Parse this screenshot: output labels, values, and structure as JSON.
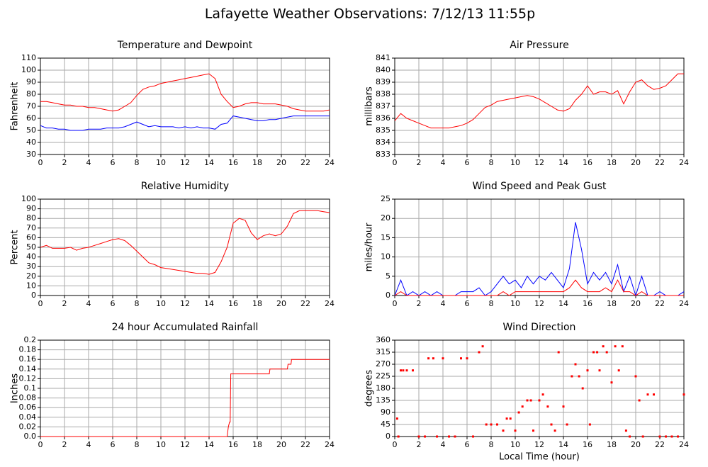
{
  "title": "Lafayette Weather Observations: 7/12/13 11:55p",
  "chart_data": [
    {
      "type": "line",
      "title": "Temperature and Dewpoint",
      "ylabel": "Fahrenheit",
      "x": [
        0,
        0.5,
        1,
        1.5,
        2,
        2.5,
        3,
        3.5,
        4,
        4.5,
        5,
        5.5,
        6,
        6.5,
        7,
        7.5,
        8,
        8.5,
        9,
        9.5,
        10,
        10.5,
        11,
        11.5,
        12,
        12.5,
        13,
        13.5,
        14,
        14.5,
        15,
        15.5,
        16,
        16.5,
        17,
        17.5,
        18,
        18.5,
        19,
        19.5,
        20,
        20.5,
        21,
        21.5,
        22,
        22.5,
        23,
        23.5,
        24
      ],
      "series": [
        {
          "color": "#ff0000",
          "values": [
            74,
            74,
            73,
            72,
            71,
            71,
            70,
            70,
            69,
            69,
            68,
            67,
            66,
            67,
            70,
            73,
            79,
            84,
            86,
            87,
            89,
            90,
            91,
            92,
            93,
            94,
            95,
            96,
            97,
            93,
            80,
            74,
            69,
            70,
            72,
            73,
            73,
            72,
            72,
            72,
            71,
            70,
            68,
            67,
            66,
            66,
            66,
            66,
            67
          ]
        },
        {
          "color": "#0000ff",
          "values": [
            54,
            52,
            52,
            51,
            51,
            50,
            50,
            50,
            51,
            51,
            51,
            52,
            52,
            52,
            53,
            55,
            57,
            55,
            53,
            54,
            53,
            53,
            53,
            52,
            53,
            52,
            53,
            52,
            52,
            51,
            55,
            56,
            62,
            61,
            60,
            59,
            58,
            58,
            59,
            59,
            60,
            61,
            62,
            62,
            62,
            62,
            62,
            62,
            62
          ]
        }
      ],
      "xlim": [
        0,
        24
      ],
      "xticks": [
        0,
        2,
        4,
        6,
        8,
        10,
        12,
        14,
        16,
        18,
        20,
        22,
        24
      ],
      "ylim": [
        30,
        110
      ],
      "yticks": [
        30,
        40,
        50,
        60,
        70,
        80,
        90,
        100,
        110
      ]
    },
    {
      "type": "line",
      "title": "Air Pressure",
      "ylabel": "millibars",
      "x": [
        0,
        0.5,
        1,
        1.5,
        2,
        2.5,
        3,
        3.5,
        4,
        4.5,
        5,
        5.5,
        6,
        6.5,
        7,
        7.5,
        8,
        8.5,
        9,
        9.5,
        10,
        10.5,
        11,
        11.5,
        12,
        12.5,
        13,
        13.5,
        14,
        14.5,
        15,
        15.5,
        16,
        16.5,
        17,
        17.5,
        18,
        18.5,
        19,
        19.5,
        20,
        20.5,
        21,
        21.5,
        22,
        22.5,
        23,
        23.5,
        24
      ],
      "series": [
        {
          "color": "#ff0000",
          "values": [
            835.8,
            836.4,
            836,
            835.8,
            835.6,
            835.4,
            835.2,
            835.2,
            835.2,
            835.2,
            835.3,
            835.4,
            835.6,
            835.9,
            836.4,
            836.9,
            837.1,
            837.4,
            837.5,
            837.6,
            837.7,
            837.8,
            837.9,
            837.8,
            837.6,
            837.3,
            837,
            836.7,
            836.6,
            836.8,
            837.5,
            838,
            838.7,
            838,
            838.2,
            838.2,
            838,
            838.3,
            837.2,
            838.2,
            839,
            839.2,
            838.7,
            838.4,
            838.5,
            838.7,
            839.2,
            839.7,
            839.7
          ]
        }
      ],
      "xlim": [
        0,
        24
      ],
      "xticks": [
        0,
        2,
        4,
        6,
        8,
        10,
        12,
        14,
        16,
        18,
        20,
        22,
        24
      ],
      "ylim": [
        833,
        841
      ],
      "yticks": [
        833,
        834,
        835,
        836,
        837,
        838,
        839,
        840,
        841
      ]
    },
    {
      "type": "line",
      "title": "Relative Humidity",
      "ylabel": "Percent",
      "x": [
        0,
        0.5,
        1,
        1.5,
        2,
        2.5,
        3,
        3.5,
        4,
        4.5,
        5,
        5.5,
        6,
        6.5,
        7,
        7.5,
        8,
        8.5,
        9,
        9.5,
        10,
        10.5,
        11,
        11.5,
        12,
        12.5,
        13,
        13.5,
        14,
        14.5,
        15,
        15.5,
        16,
        16.5,
        17,
        17.5,
        18,
        18.5,
        19,
        19.5,
        20,
        20.5,
        21,
        21.5,
        22,
        22.5,
        23,
        23.5,
        24
      ],
      "series": [
        {
          "color": "#ff0000",
          "values": [
            50,
            52,
            49,
            49,
            49,
            50,
            47,
            49,
            50,
            52,
            54,
            56,
            58,
            59,
            57,
            52,
            46,
            40,
            34,
            32,
            29,
            28,
            27,
            26,
            25,
            24,
            23,
            23,
            22,
            24,
            35,
            50,
            75,
            80,
            78,
            65,
            58,
            62,
            64,
            62,
            64,
            72,
            85,
            88,
            88,
            88,
            88,
            87,
            86
          ]
        }
      ],
      "xlim": [
        0,
        24
      ],
      "xticks": [
        0,
        2,
        4,
        6,
        8,
        10,
        12,
        14,
        16,
        18,
        20,
        22,
        24
      ],
      "ylim": [
        0,
        100
      ],
      "yticks": [
        0,
        10,
        20,
        30,
        40,
        50,
        60,
        70,
        80,
        90,
        100
      ]
    },
    {
      "type": "line",
      "title": "Wind Speed and Peak Gust",
      "ylabel": "miles/hour",
      "x": [
        0,
        0.5,
        1,
        1.5,
        2,
        2.5,
        3,
        3.5,
        4,
        4.5,
        5,
        5.5,
        6,
        6.5,
        7,
        7.5,
        8,
        8.5,
        9,
        9.5,
        10,
        10.5,
        11,
        11.5,
        12,
        12.5,
        13,
        13.5,
        14,
        14.5,
        15,
        15.5,
        16,
        16.5,
        17,
        17.5,
        18,
        18.5,
        19,
        19.5,
        20,
        20.5,
        21,
        21.5,
        22,
        22.5,
        23,
        23.5,
        24
      ],
      "series": [
        {
          "color": "#0000ff",
          "values": [
            0,
            4,
            0,
            1,
            0,
            1,
            0,
            1,
            0,
            0,
            0,
            1,
            1,
            1,
            2,
            0,
            1,
            3,
            5,
            3,
            4,
            2,
            5,
            3,
            5,
            4,
            6,
            4,
            2,
            7,
            19,
            12,
            3,
            6,
            4,
            6,
            3,
            8,
            1,
            5,
            0,
            5,
            0,
            0,
            1,
            0,
            0,
            0,
            1
          ]
        },
        {
          "color": "#ff0000",
          "values": [
            0,
            1,
            0,
            0,
            0,
            0,
            0,
            0,
            0,
            0,
            0,
            0,
            0,
            0,
            0,
            0,
            0,
            0,
            1,
            0,
            1,
            1,
            1,
            1,
            1,
            1,
            1,
            1,
            1,
            2,
            4,
            2,
            1,
            1,
            1,
            2,
            1,
            4,
            1,
            1,
            0,
            1,
            0,
            0,
            0,
            0,
            0,
            0,
            0
          ]
        }
      ],
      "xlim": [
        0,
        24
      ],
      "xticks": [
        0,
        2,
        4,
        6,
        8,
        10,
        12,
        14,
        16,
        18,
        20,
        22,
        24
      ],
      "ylim": [
        0,
        25
      ],
      "yticks": [
        0,
        5,
        10,
        15,
        20,
        25
      ]
    },
    {
      "type": "line",
      "title": "24 hour Accumulated Rainfall",
      "ylabel": "Inches",
      "x": [
        0,
        15.5,
        15.6,
        15.7,
        15.75,
        15.8,
        19,
        19.05,
        20.5,
        20.55,
        20.8,
        20.85,
        24
      ],
      "series": [
        {
          "color": "#ff0000",
          "values": [
            0,
            0,
            0.02,
            0.03,
            0.03,
            0.13,
            0.13,
            0.14,
            0.14,
            0.15,
            0.15,
            0.16,
            0.16
          ]
        }
      ],
      "xlim": [
        0,
        24
      ],
      "xticks": [
        0,
        2,
        4,
        6,
        8,
        10,
        12,
        14,
        16,
        18,
        20,
        22,
        24
      ],
      "ylim": [
        0,
        0.2
      ],
      "yticks": [
        {
          "value": 0,
          "label": "0.0"
        },
        0.02,
        0.04,
        0.06,
        0.08,
        0.1,
        0.12,
        0.14,
        0.16,
        0.18,
        0.2
      ]
    },
    {
      "type": "scatter",
      "title": "Wind Direction",
      "ylabel": "degrees",
      "xlabel": "Local Time (hour)",
      "x": [
        0.2,
        0.3,
        0.5,
        0.7,
        1,
        1.5,
        2,
        2.5,
        2.8,
        3.2,
        3.5,
        4,
        4.5,
        5,
        5.5,
        6,
        6.5,
        7,
        7.3,
        7.6,
        8,
        8.5,
        9,
        9.3,
        9.6,
        10,
        10.3,
        10.6,
        11,
        11.3,
        11.5,
        12,
        12.3,
        12.7,
        13,
        13.3,
        13.6,
        14,
        14.3,
        14.7,
        15,
        15.3,
        15.6,
        16,
        16.2,
        16.5,
        16.8,
        17,
        17.3,
        17.6,
        18,
        18.3,
        18.6,
        18.9,
        19.2,
        19.5,
        20,
        20.3,
        20.6,
        21,
        21.5,
        22,
        22.5,
        23,
        23.5,
        24
      ],
      "series": [
        {
          "color": "#ff0000",
          "values": [
            67,
            0,
            247,
            247,
            247,
            247,
            0,
            0,
            292,
            292,
            0,
            292,
            0,
            0,
            292,
            292,
            0,
            315,
            337,
            45,
            45,
            45,
            22,
            67,
            67,
            22,
            90,
            112,
            135,
            135,
            22,
            135,
            157,
            112,
            45,
            22,
            315,
            112,
            45,
            225,
            270,
            225,
            180,
            247,
            45,
            315,
            315,
            247,
            337,
            315,
            202,
            337,
            247,
            337,
            22,
            0,
            225,
            135,
            0,
            157,
            157,
            0,
            0,
            0,
            0,
            157
          ]
        }
      ],
      "xlim": [
        0,
        24
      ],
      "xticks": [
        0,
        2,
        4,
        6,
        8,
        10,
        12,
        14,
        16,
        18,
        20,
        22,
        24
      ],
      "ylim": [
        0,
        360
      ],
      "yticks": [
        0,
        45,
        90,
        135,
        180,
        225,
        270,
        315,
        360
      ]
    }
  ]
}
